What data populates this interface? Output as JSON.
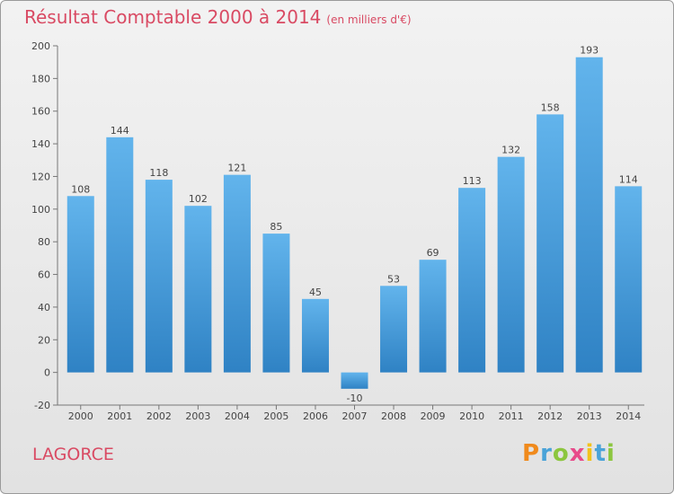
{
  "title": "Résultat Comptable 2000 à 2014",
  "subtitle": "(en milliers d'€)",
  "location": "LAGORCE",
  "brand": {
    "letters": [
      "P",
      "r",
      "o",
      "x",
      "i",
      "t",
      "i"
    ],
    "colors": [
      "#f08a1c",
      "#4aa3d8",
      "#8cc63f",
      "#e84a8a",
      "#f2c21a",
      "#4aa3d8",
      "#8cc63f"
    ]
  },
  "colors": {
    "bar_top": "#62b4ec",
    "bar_bottom": "#2f82c4",
    "text": "#444444",
    "grid": "#bdbdbd"
  },
  "chart_data": {
    "type": "bar",
    "categories": [
      "2000",
      "2001",
      "2002",
      "2003",
      "2004",
      "2005",
      "2006",
      "2007",
      "2008",
      "2009",
      "2010",
      "2011",
      "2012",
      "2013",
      "2014"
    ],
    "values": [
      108,
      144,
      118,
      102,
      121,
      85,
      45,
      -10,
      53,
      69,
      113,
      132,
      158,
      193,
      114
    ],
    "value_labels": [
      "108",
      "144",
      "118",
      "102",
      "121",
      "85",
      "45",
      "-10",
      "53",
      "69",
      "113",
      "132",
      "158",
      "193",
      "114"
    ],
    "ylim": [
      -20,
      200
    ],
    "yticks": [
      -20,
      0,
      20,
      40,
      60,
      80,
      100,
      120,
      140,
      160,
      180,
      200
    ],
    "ytick_labels": [
      "-20",
      "0",
      "20",
      "40",
      "60",
      "80",
      "100",
      "120",
      "140",
      "160",
      "180",
      "200"
    ],
    "grid": false,
    "legend": "none"
  }
}
